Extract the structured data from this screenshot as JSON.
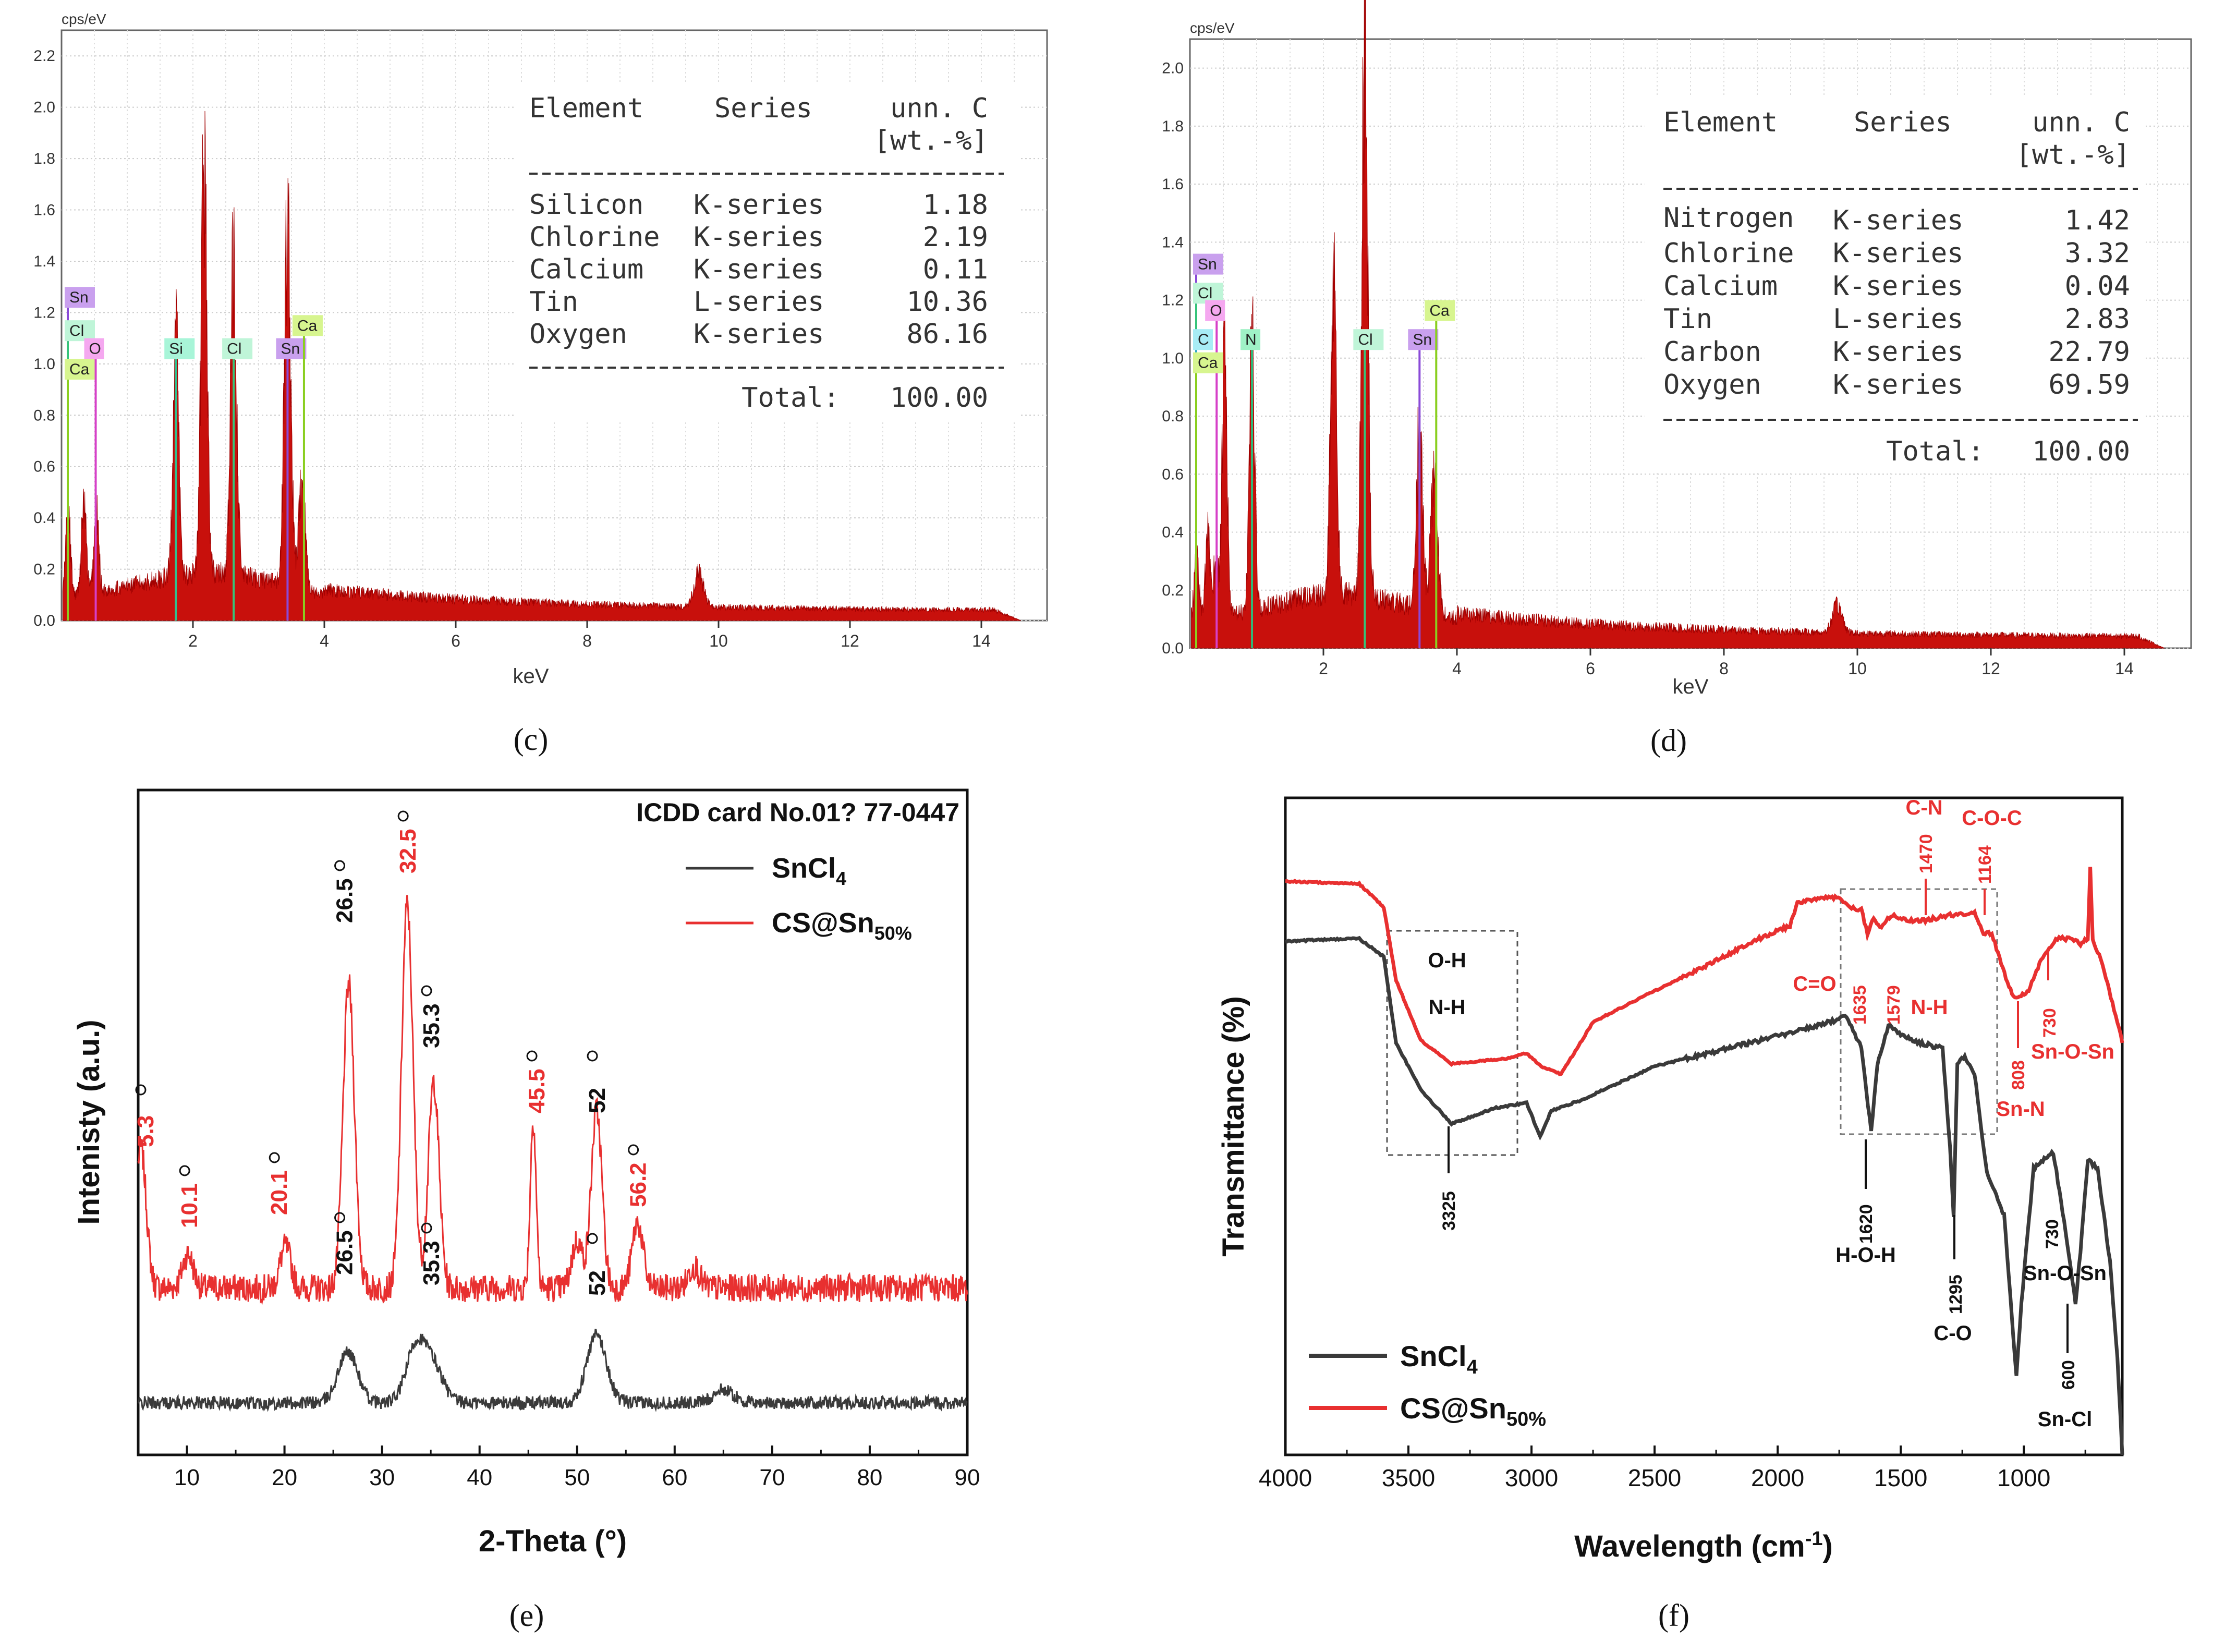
{
  "chart_data": [
    {
      "panel": "(c)",
      "type": "bar",
      "y_unit": "cps/eV",
      "xlabel": "keV",
      "xlim": [
        0,
        15
      ],
      "ylim": [
        0,
        2.3
      ],
      "xticks": [
        2,
        4,
        6,
        8,
        10,
        12,
        14
      ],
      "yticks": [
        0.0,
        0.2,
        0.4,
        0.6,
        0.8,
        1.0,
        1.2,
        1.4,
        1.6,
        1.8,
        2.0,
        2.2
      ],
      "peaks": [
        {
          "x": 0.1,
          "y": 0.35
        },
        {
          "x": 0.34,
          "y": 0.38
        },
        {
          "x": 0.53,
          "y": 0.33
        },
        {
          "x": 1.74,
          "y": 1.02
        },
        {
          "x": 2.17,
          "y": 1.77
        },
        {
          "x": 2.62,
          "y": 1.31
        },
        {
          "x": 3.44,
          "y": 1.5
        },
        {
          "x": 3.66,
          "y": 0.45
        },
        {
          "x": 9.7,
          "y": 0.14
        }
      ],
      "element_lines": [
        {
          "label": "Sn",
          "x": 0.0,
          "height": 1.3
        },
        {
          "label": "Cl",
          "x": 0.0,
          "height": 1.17
        },
        {
          "label": "Ca",
          "x": 0.0,
          "height": 1.02
        },
        {
          "label": "O",
          "x": 0.52,
          "height": 1.1
        },
        {
          "label": "Si",
          "x": 1.74,
          "height": 1.1
        },
        {
          "label": "Cl",
          "x": 2.62,
          "height": 1.1
        },
        {
          "label": "Sn",
          "x": 3.44,
          "height": 1.1
        },
        {
          "label": "Ca",
          "x": 3.69,
          "height": 1.19
        }
      ],
      "table": {
        "headers": [
          "Element",
          "Series",
          "unn. C"
        ],
        "unit": "[wt.-%]",
        "rows": [
          [
            "Silicon",
            "K-series",
            "1.18"
          ],
          [
            "Chlorine",
            "K-series",
            "2.19"
          ],
          [
            "Calcium",
            "K-series",
            "0.11"
          ],
          [
            "Tin",
            "L-series",
            "10.36"
          ],
          [
            "Oxygen",
            "K-series",
            "86.16"
          ]
        ],
        "total_label": "Total:",
        "total_value": "100.00"
      }
    },
    {
      "panel": "(d)",
      "type": "bar",
      "y_unit": "cps/eV",
      "xlabel": "keV",
      "xlim": [
        0,
        15
      ],
      "ylim": [
        0,
        2.1
      ],
      "xticks": [
        2,
        4,
        6,
        8,
        10,
        12,
        14
      ],
      "yticks": [
        0.0,
        0.2,
        0.4,
        0.6,
        0.8,
        1.0,
        1.2,
        1.4,
        1.6,
        1.8,
        2.0
      ],
      "peaks": [
        {
          "x": 0.1,
          "y": 0.25
        },
        {
          "x": 0.27,
          "y": 0.3
        },
        {
          "x": 0.39,
          "y": 0.22
        },
        {
          "x": 0.52,
          "y": 0.95
        },
        {
          "x": 0.93,
          "y": 1.03
        },
        {
          "x": 2.15,
          "y": 1.16
        },
        {
          "x": 2.62,
          "y": 2.01
        },
        {
          "x": 3.44,
          "y": 0.65
        },
        {
          "x": 3.66,
          "y": 0.56
        },
        {
          "x": 9.7,
          "y": 0.1
        }
      ],
      "element_lines": [
        {
          "label": "Sn",
          "x": 0.0,
          "height": 1.36
        },
        {
          "label": "Cl",
          "x": 0.0,
          "height": 1.26
        },
        {
          "label": "O",
          "x": 0.4,
          "height": 1.2
        },
        {
          "label": "C",
          "x": 0.0,
          "height": 1.1
        },
        {
          "label": "Ca",
          "x": 0.0,
          "height": 1.02
        },
        {
          "label": "N",
          "x": 0.93,
          "height": 1.1
        },
        {
          "label": "Cl",
          "x": 2.62,
          "height": 1.1
        },
        {
          "label": "Sn",
          "x": 3.44,
          "height": 1.1
        },
        {
          "label": "Ca",
          "x": 3.69,
          "height": 1.2
        }
      ],
      "table": {
        "headers": [
          "Element",
          "Series",
          "unn. C"
        ],
        "unit": "[wt.-%]",
        "rows": [
          [
            "Nitrogen",
            "K-series",
            "1.42"
          ],
          [
            "Chlorine",
            "K-series",
            "3.32"
          ],
          [
            "Calcium",
            "K-series",
            "0.04"
          ],
          [
            "Tin",
            "L-series",
            "2.83"
          ],
          [
            "Carbon",
            "K-series",
            "22.79"
          ],
          [
            "Oxygen",
            "K-series",
            "69.59"
          ]
        ],
        "total_label": "Total:",
        "total_value": "100.00"
      }
    },
    {
      "panel": "(e)",
      "type": "line",
      "title": "ICDD card No.01?  77-0447",
      "xlabel": "2-Theta (°)",
      "ylabel": "Intenisty (a.u.)",
      "xlim": [
        5,
        90
      ],
      "xticks": [
        10,
        20,
        30,
        40,
        50,
        60,
        70,
        80,
        90
      ],
      "series": [
        {
          "name": "SnCl",
          "name_sub": "4",
          "color": "#3a3a3a",
          "peaks": [
            {
              "x": 26.5,
              "y": 0.27
            },
            {
              "x": 33.5,
              "y": 0.3
            },
            {
              "x": 35.3,
              "y": 0.18
            },
            {
              "x": 52,
              "y": 0.36
            },
            {
              "x": 65,
              "y": 0.07
            }
          ],
          "annotations": [
            "26.5",
            "35.3",
            "52"
          ]
        },
        {
          "name": "CS@Sn",
          "name_sub": "50%",
          "color": "#e83030",
          "peaks": [
            {
              "x": 5.3,
              "y": 0.55
            },
            {
              "x": 10.1,
              "y": 0.18
            },
            {
              "x": 20.1,
              "y": 0.22
            },
            {
              "x": 26.5,
              "y": 1.37
            },
            {
              "x": 32.5,
              "y": 1.72
            },
            {
              "x": 35.3,
              "y": 1.1
            },
            {
              "x": 45.5,
              "y": 0.9
            },
            {
              "x": 52,
              "y": 0.95
            },
            {
              "x": 56.2,
              "y": 0.35
            }
          ],
          "annotations_red": [
            "5.3",
            "10.1",
            "20.1",
            "32.5",
            "45.5",
            "56.2"
          ],
          "annotations_black": [
            "26.5",
            "35.3",
            "52"
          ]
        }
      ]
    },
    {
      "panel": "(f)",
      "type": "line",
      "xlabel": "Wavelength (cm",
      "xlabel_sup": "-1",
      "xlabel_end": ")",
      "ylabel": "Transmittance (%)",
      "xlim": [
        4000,
        600
      ],
      "xticks": [
        4000,
        3500,
        3000,
        2500,
        2000,
        1500,
        1000
      ],
      "series": [
        {
          "name": "SnCl",
          "name_sub": "4",
          "color": "#3a3a3a",
          "bands_cm-1": [
            3325,
            2950,
            1620,
            1295,
            1030,
            730,
            600
          ]
        },
        {
          "name": "CS@Sn",
          "name_sub": "50%",
          "color": "#e83030",
          "bands_cm-1": [
            3300,
            2880,
            1635,
            1579,
            1470,
            1164,
            1030,
            808,
            730
          ]
        }
      ],
      "annotations_black": {
        "oh": "O-H",
        "nh": "N-H",
        "b3325": "3325",
        "b1620": "1620",
        "hoh": "H-O-H",
        "b1295": "1295",
        "co": "C-O",
        "b730": "730",
        "snosn": "Sn-O-Sn",
        "b600": "600",
        "sncl": "Sn-Cl"
      },
      "annotations_red": {
        "cn": "C-N",
        "coc": "C-O-C",
        "b1470": "1470",
        "b1164": "1164",
        "c_o": "C=O",
        "b1635": "1635",
        "b1579": "1579",
        "nh": "N-H",
        "b808": "808",
        "snn": "Sn-N",
        "b730": "730",
        "snosn": "Sn-O-Sn"
      }
    }
  ],
  "captions": {
    "c": "(c)",
    "d": "(d)",
    "e": "(e)",
    "f": "(f)"
  }
}
